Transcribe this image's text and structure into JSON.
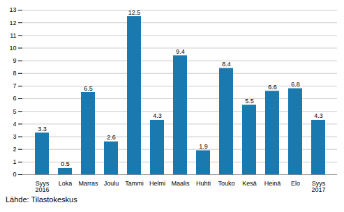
{
  "chart_data": {
    "type": "bar",
    "caption": "Lähde: Tilastokeskus",
    "categories": [
      "Syys\n2016",
      "Loka",
      "Marras",
      "Joulu",
      "Tammi",
      "Helmi",
      "Maalis",
      "Huhti",
      "Touko",
      "Kesä",
      "Heinä",
      "Elo",
      "Syys\n2017"
    ],
    "values": [
      3.3,
      0.5,
      6.5,
      2.6,
      12.5,
      4.3,
      9.4,
      1.9,
      8.4,
      5.5,
      6.6,
      6.8,
      4.3
    ],
    "color": "#1a7ab0",
    "ylim": [
      0,
      13
    ],
    "yticks": [
      0,
      1,
      2,
      3,
      4,
      5,
      6,
      7,
      8,
      9,
      10,
      11,
      12,
      13
    ],
    "grid": true,
    "data_labels": true
  }
}
